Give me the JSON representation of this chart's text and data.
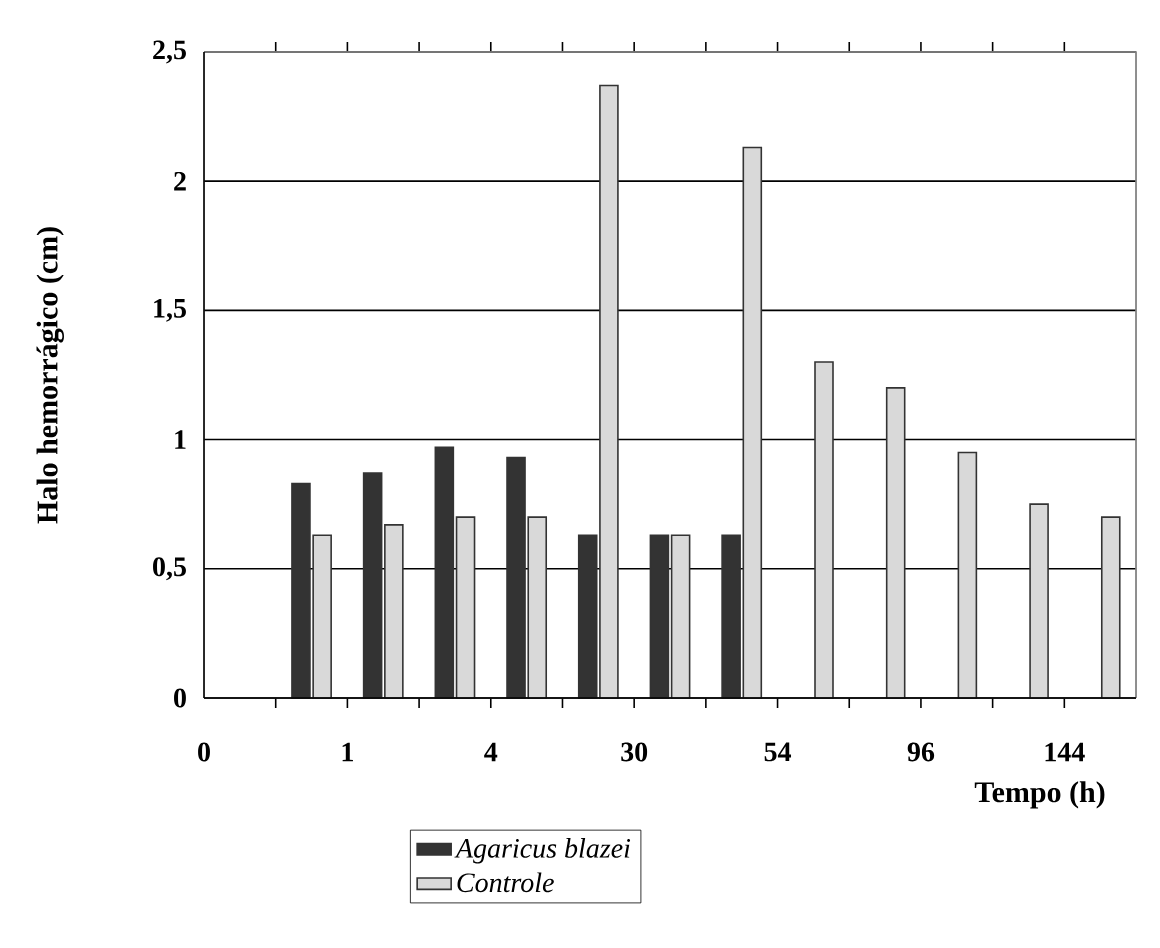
{
  "chart_data": {
    "type": "bar",
    "xlabel": "Tempo (h)",
    "ylabel": "Halo hemorrágico (cm)",
    "categories": [
      null,
      null,
      null,
      null,
      null,
      null,
      null,
      null,
      null,
      null,
      null,
      null,
      null
    ],
    "annotations": [
      "0",
      "1",
      "4",
      "30",
      "54",
      "96",
      "144"
    ],
    "ylim": [
      0,
      2.5
    ],
    "yticks": [
      {
        "value": 0,
        "label": "0"
      },
      {
        "value": 0.5,
        "label": "0,5"
      },
      {
        "value": 1,
        "label": "1"
      },
      {
        "value": 1.5,
        "label": "1,5"
      },
      {
        "value": 2,
        "label": "2"
      },
      {
        "value": 2.5,
        "label": "2,5"
      }
    ],
    "series": [
      {
        "name": "Agaricus blazei",
        "color": "#333333",
        "values": [
          null,
          0.83,
          0.87,
          0.97,
          0.93,
          0.63,
          0.63,
          0.63,
          null,
          null,
          null,
          null,
          null
        ]
      },
      {
        "name": "Controle",
        "color": "#d9d9d9",
        "values": [
          null,
          0.63,
          0.67,
          0.7,
          0.7,
          2.37,
          0.63,
          2.13,
          1.3,
          1.2,
          0.95,
          0.75,
          0.7
        ]
      }
    ],
    "grid": "y",
    "legend": "bottom"
  }
}
